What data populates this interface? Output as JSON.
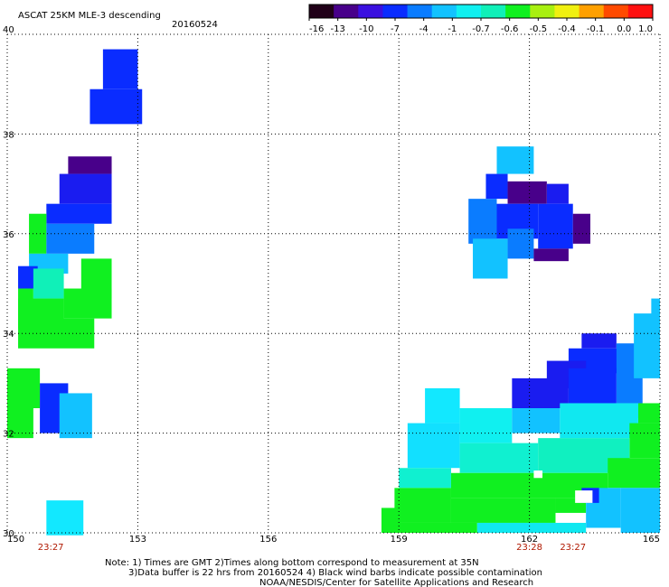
{
  "chart_data": {
    "type": "heatmap",
    "title": "ASCAT 25KM MLE-3 descending",
    "date": "20160524",
    "x_ticks": [
      "150",
      "153",
      "156",
      "159",
      "162",
      "165"
    ],
    "y_ticks": [
      "30",
      "32",
      "34",
      "36",
      "38",
      "40"
    ],
    "xlim": [
      150,
      165
    ],
    "ylim": [
      30,
      40
    ],
    "grid": true,
    "colorbar": {
      "labels": [
        "-16",
        "-13",
        "-10",
        "-7",
        "-4",
        "-1",
        "-0.7",
        "-0.6",
        "-0.5",
        "-0.4",
        "-0.1",
        "0.0",
        "1.0"
      ],
      "colors": [
        "#200018",
        "#48008a",
        "#3a10e0",
        "#0a2cff",
        "#0a7cff",
        "#12c2ff",
        "#10f0f0",
        "#10f0b8",
        "#10f020",
        "#a8f010",
        "#f0f010",
        "#ffa000",
        "#ff4a00",
        "#ff1010"
      ]
    },
    "time_labels": [
      {
        "text": "23:27",
        "lon": 151.0
      },
      {
        "text": "23:28",
        "lon": 162.0
      },
      {
        "text": "23:27",
        "lon": 163.0
      }
    ],
    "cells": [
      {
        "lon0": 152.2,
        "lon1": 153.0,
        "lat0": 38.9,
        "lat1": 39.7,
        "c": "#0a2cff"
      },
      {
        "lon0": 151.9,
        "lon1": 153.1,
        "lat0": 38.2,
        "lat1": 38.9,
        "c": "#0a2cff"
      },
      {
        "lon0": 151.4,
        "lon1": 152.4,
        "lat0": 37.2,
        "lat1": 37.55,
        "c": "#48008a"
      },
      {
        "lon0": 151.2,
        "lon1": 152.4,
        "lat0": 36.6,
        "lat1": 37.2,
        "c": "#1a1cf0"
      },
      {
        "lon0": 150.9,
        "lon1": 152.4,
        "lat0": 36.2,
        "lat1": 36.6,
        "c": "#0a2cff"
      },
      {
        "lon0": 150.5,
        "lon1": 150.9,
        "lat0": 35.6,
        "lat1": 36.4,
        "c": "#10f020"
      },
      {
        "lon0": 150.9,
        "lon1": 152.0,
        "lat0": 35.6,
        "lat1": 36.2,
        "c": "#0a7cff"
      },
      {
        "lon0": 150.5,
        "lon1": 151.4,
        "lat0": 35.2,
        "lat1": 35.6,
        "c": "#12c2ff"
      },
      {
        "lon0": 151.7,
        "lon1": 152.4,
        "lat0": 34.7,
        "lat1": 35.5,
        "c": "#10f020"
      },
      {
        "lon0": 150.25,
        "lon1": 150.7,
        "lat0": 34.9,
        "lat1": 35.35,
        "c": "#0a2cff"
      },
      {
        "lon0": 150.25,
        "lon1": 150.6,
        "lat0": 34.3,
        "lat1": 34.9,
        "c": "#10f020"
      },
      {
        "lon0": 150.6,
        "lon1": 151.3,
        "lat0": 34.7,
        "lat1": 35.3,
        "c": "#10f0b8"
      },
      {
        "lon0": 151.3,
        "lon1": 152.4,
        "lat0": 34.3,
        "lat1": 34.9,
        "c": "#10f020"
      },
      {
        "lon0": 150.25,
        "lon1": 151.3,
        "lat0": 34.1,
        "lat1": 34.7,
        "c": "#10f020"
      },
      {
        "lon0": 150.25,
        "lon1": 152.0,
        "lat0": 33.7,
        "lat1": 34.3,
        "c": "#10f020"
      },
      {
        "lon0": 150.0,
        "lon1": 150.75,
        "lat0": 32.5,
        "lat1": 33.3,
        "c": "#10f020"
      },
      {
        "lon0": 150.0,
        "lon1": 150.6,
        "lat0": 31.9,
        "lat1": 32.5,
        "c": "#10f020"
      },
      {
        "lon0": 150.75,
        "lon1": 151.4,
        "lat0": 32.0,
        "lat1": 33.0,
        "c": "#0a2cff"
      },
      {
        "lon0": 151.2,
        "lon1": 151.95,
        "lat0": 31.9,
        "lat1": 32.8,
        "c": "#12c2ff"
      },
      {
        "lon0": 150.9,
        "lon1": 151.75,
        "lat0": 29.95,
        "lat1": 30.65,
        "c": "#12e8ff"
      },
      {
        "lon0": 161.25,
        "lon1": 162.1,
        "lat0": 37.2,
        "lat1": 37.75,
        "c": "#12c2ff"
      },
      {
        "lon0": 161.0,
        "lon1": 161.5,
        "lat0": 36.7,
        "lat1": 37.2,
        "c": "#0a2cff"
      },
      {
        "lon0": 161.5,
        "lon1": 162.4,
        "lat0": 36.6,
        "lat1": 37.05,
        "c": "#48008a"
      },
      {
        "lon0": 162.4,
        "lon1": 162.9,
        "lat0": 36.6,
        "lat1": 37.0,
        "c": "#1a1cf0"
      },
      {
        "lon0": 160.6,
        "lon1": 161.25,
        "lat0": 35.8,
        "lat1": 36.7,
        "c": "#0a7cff"
      },
      {
        "lon0": 161.25,
        "lon1": 162.2,
        "lat0": 35.9,
        "lat1": 36.6,
        "c": "#0a2cff"
      },
      {
        "lon0": 162.2,
        "lon1": 163.0,
        "lat0": 35.7,
        "lat1": 36.6,
        "c": "#0a2cff"
      },
      {
        "lon0": 163.0,
        "lon1": 163.4,
        "lat0": 35.8,
        "lat1": 36.4,
        "c": "#48008a"
      },
      {
        "lon0": 160.7,
        "lon1": 161.5,
        "lat0": 35.1,
        "lat1": 35.9,
        "c": "#12c2ff"
      },
      {
        "lon0": 161.5,
        "lon1": 162.1,
        "lat0": 35.5,
        "lat1": 36.1,
        "c": "#0a7cff"
      },
      {
        "lon0": 162.1,
        "lon1": 162.9,
        "lat0": 35.45,
        "lat1": 35.7,
        "c": "#48008a"
      },
      {
        "lon0": 163.2,
        "lon1": 164.0,
        "lat0": 33.7,
        "lat1": 34.0,
        "c": "#1a1cf0"
      },
      {
        "lon0": 162.9,
        "lon1": 164.4,
        "lat0": 33.2,
        "lat1": 33.7,
        "c": "#0a2cff"
      },
      {
        "lon0": 162.4,
        "lon1": 163.3,
        "lat0": 32.9,
        "lat1": 33.45,
        "c": "#1a1cf0"
      },
      {
        "lon0": 164.0,
        "lon1": 164.6,
        "lat0": 32.6,
        "lat1": 33.8,
        "c": "#0a7cff"
      },
      {
        "lon0": 164.4,
        "lon1": 165.0,
        "lat0": 33.1,
        "lat1": 34.4,
        "c": "#12c2ff"
      },
      {
        "lon0": 164.8,
        "lon1": 165.0,
        "lat0": 34.0,
        "lat1": 34.7,
        "c": "#12c2ff"
      },
      {
        "lon0": 161.6,
        "lon1": 162.9,
        "lat0": 32.5,
        "lat1": 33.1,
        "c": "#1a1cf0"
      },
      {
        "lon0": 162.9,
        "lon1": 164.0,
        "lat0": 32.6,
        "lat1": 33.3,
        "c": "#0a2cff"
      },
      {
        "lon0": 164.0,
        "lon1": 164.5,
        "lat0": 32.3,
        "lat1": 32.6,
        "c": "#12c2ff"
      },
      {
        "lon0": 164.5,
        "lon1": 165.0,
        "lat0": 32.2,
        "lat1": 32.6,
        "c": "#10f020"
      },
      {
        "lon0": 159.6,
        "lon1": 160.4,
        "lat0": 32.2,
        "lat1": 32.9,
        "c": "#12e8ff"
      },
      {
        "lon0": 160.4,
        "lon1": 161.6,
        "lat0": 31.8,
        "lat1": 32.5,
        "c": "#10f0f0"
      },
      {
        "lon0": 161.6,
        "lon1": 162.7,
        "lat0": 32.0,
        "lat1": 32.5,
        "c": "#12c2ff"
      },
      {
        "lon0": 162.7,
        "lon1": 164.5,
        "lat0": 31.9,
        "lat1": 32.6,
        "c": "#10e8f0"
      },
      {
        "lon0": 164.3,
        "lon1": 165.0,
        "lat0": 31.5,
        "lat1": 32.2,
        "c": "#10f020"
      },
      {
        "lon0": 159.2,
        "lon1": 160.4,
        "lat0": 31.3,
        "lat1": 32.2,
        "c": "#12e0ff"
      },
      {
        "lon0": 160.4,
        "lon1": 162.2,
        "lat0": 31.2,
        "lat1": 31.8,
        "c": "#10f0d0"
      },
      {
        "lon0": 162.2,
        "lon1": 164.3,
        "lat0": 31.2,
        "lat1": 31.9,
        "c": "#10f0c0"
      },
      {
        "lon0": 163.8,
        "lon1": 165.0,
        "lat0": 30.9,
        "lat1": 31.5,
        "c": "#10f020"
      },
      {
        "lon0": 159.0,
        "lon1": 160.2,
        "lat0": 30.9,
        "lat1": 31.3,
        "c": "#10f0d0"
      },
      {
        "lon0": 160.2,
        "lon1": 163.8,
        "lat0": 30.7,
        "lat1": 31.2,
        "c": "#10f020"
      },
      {
        "lon0": 158.9,
        "lon1": 160.2,
        "lat0": 30.2,
        "lat1": 30.9,
        "c": "#10f020"
      },
      {
        "lon0": 160.2,
        "lon1": 162.6,
        "lat0": 30.2,
        "lat1": 30.7,
        "c": "#10f020"
      },
      {
        "lon0": 162.6,
        "lon1": 163.3,
        "lat0": 30.4,
        "lat1": 30.7,
        "c": "#10f020"
      },
      {
        "lon0": 163.3,
        "lon1": 164.1,
        "lat0": 30.1,
        "lat1": 30.9,
        "c": "#12c2ff"
      },
      {
        "lon0": 164.1,
        "lon1": 165.0,
        "lat0": 30.0,
        "lat1": 30.9,
        "c": "#12c2ff"
      },
      {
        "lon0": 158.9,
        "lon1": 160.8,
        "lat0": 30.0,
        "lat1": 30.2,
        "c": "#10f020"
      },
      {
        "lon0": 160.8,
        "lon1": 163.3,
        "lat0": 30.0,
        "lat1": 30.2,
        "c": "#10e8f0"
      },
      {
        "lon0": 163.2,
        "lon1": 163.6,
        "lat0": 30.6,
        "lat1": 30.9,
        "c": "#0a2cff"
      },
      {
        "lon0": 158.6,
        "lon1": 159.0,
        "lat0": 30.0,
        "lat1": 30.5,
        "c": "#10f020"
      }
    ],
    "notes": [
      "Note: 1) Times are GMT 2)Times along bottom correspond to measurement at 35N",
      "3)Data buffer is 22 hrs from 20160524 4) Black wind barbs indicate possible contamination",
      "NOAA/NESDIS/Center for Satellite Applications and Research"
    ]
  }
}
